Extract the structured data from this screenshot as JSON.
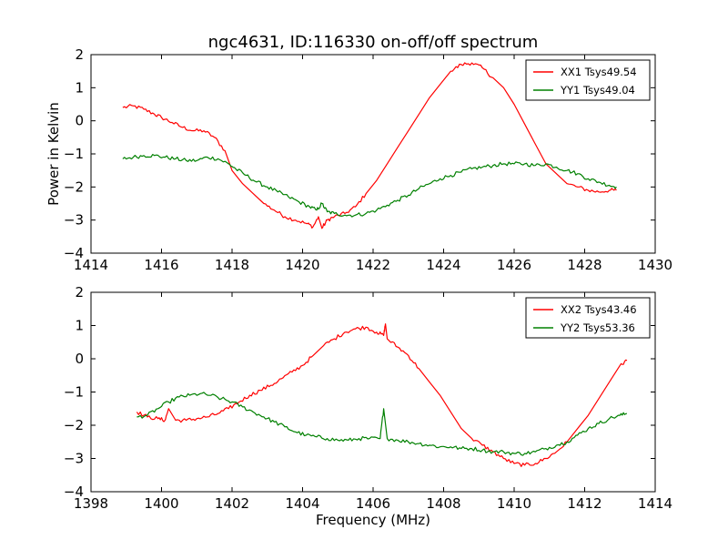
{
  "chart_data": [
    {
      "type": "line",
      "title": "ngc4631, ID:116330 on-off/off spectrum",
      "xlabel": "",
      "ylabel": "Power in Kelvin",
      "xlim": [
        1414,
        1430
      ],
      "ylim": [
        -4,
        2
      ],
      "xticks": [
        "1414",
        "1416",
        "1418",
        "1420",
        "1422",
        "1424",
        "1426",
        "1428",
        "1430"
      ],
      "yticks": [
        "-4",
        "-3",
        "-2",
        "-1",
        "0",
        "1",
        "2"
      ],
      "grid": false,
      "legend_position": "top-right",
      "series": [
        {
          "name": "XX1 Tsys49.54",
          "color": "#ff0000",
          "x": [
            1414.9,
            1415.2,
            1415.5,
            1415.8,
            1416.0,
            1416.3,
            1416.6,
            1416.9,
            1417.2,
            1417.5,
            1417.8,
            1418.0,
            1418.3,
            1418.6,
            1418.9,
            1419.2,
            1419.5,
            1419.8,
            1420.1,
            1420.3,
            1420.45,
            1420.55,
            1420.7,
            1420.9,
            1421.2,
            1421.5,
            1421.8,
            1422.1,
            1422.4,
            1422.7,
            1423.0,
            1423.3,
            1423.6,
            1423.9,
            1424.2,
            1424.5,
            1424.8,
            1425.1,
            1425.4,
            1425.7,
            1426.0,
            1426.3,
            1426.6,
            1426.9,
            1427.2,
            1427.5,
            1427.8,
            1428.1,
            1428.4,
            1428.7,
            1428.9
          ],
          "values": [
            0.4,
            0.45,
            0.35,
            0.2,
            0.1,
            -0.05,
            -0.2,
            -0.3,
            -0.3,
            -0.5,
            -0.9,
            -1.5,
            -1.9,
            -2.2,
            -2.5,
            -2.7,
            -2.9,
            -3.0,
            -3.1,
            -3.2,
            -2.9,
            -3.25,
            -3.0,
            -2.9,
            -2.8,
            -2.6,
            -2.2,
            -1.8,
            -1.3,
            -0.8,
            -0.3,
            0.2,
            0.7,
            1.1,
            1.5,
            1.7,
            1.75,
            1.6,
            1.3,
            1.0,
            0.5,
            -0.1,
            -0.7,
            -1.3,
            -1.6,
            -1.9,
            -2.0,
            -2.1,
            -2.15,
            -2.1,
            -2.1
          ]
        },
        {
          "name": "YY1 Tsys49.04",
          "color": "#008000",
          "x": [
            1414.9,
            1415.2,
            1415.5,
            1415.8,
            1416.1,
            1416.4,
            1416.7,
            1417.0,
            1417.3,
            1417.6,
            1417.9,
            1418.1,
            1418.4,
            1418.7,
            1419.0,
            1419.3,
            1419.6,
            1419.9,
            1420.2,
            1420.4,
            1420.55,
            1420.7,
            1420.9,
            1421.2,
            1421.5,
            1421.8,
            1422.1,
            1422.4,
            1422.7,
            1423.0,
            1423.3,
            1423.6,
            1423.9,
            1424.2,
            1424.5,
            1424.8,
            1425.1,
            1425.4,
            1425.7,
            1426.0,
            1426.3,
            1426.6,
            1426.9,
            1427.2,
            1427.5,
            1427.8,
            1428.1,
            1428.4,
            1428.7,
            1428.9
          ],
          "values": [
            -1.15,
            -1.1,
            -1.05,
            -1.05,
            -1.1,
            -1.15,
            -1.2,
            -1.2,
            -1.1,
            -1.15,
            -1.3,
            -1.45,
            -1.65,
            -1.85,
            -2.0,
            -2.15,
            -2.3,
            -2.45,
            -2.6,
            -2.7,
            -2.5,
            -2.75,
            -2.8,
            -2.85,
            -2.85,
            -2.8,
            -2.7,
            -2.55,
            -2.4,
            -2.25,
            -2.05,
            -1.9,
            -1.75,
            -1.65,
            -1.55,
            -1.45,
            -1.4,
            -1.35,
            -1.3,
            -1.3,
            -1.3,
            -1.35,
            -1.3,
            -1.4,
            -1.5,
            -1.6,
            -1.75,
            -1.85,
            -1.95,
            -2.0
          ]
        }
      ]
    },
    {
      "type": "line",
      "title": "",
      "xlabel": "Frequency (MHz)",
      "ylabel": "",
      "xlim": [
        1398,
        1414
      ],
      "ylim": [
        -4,
        2
      ],
      "xticks": [
        "1398",
        "1400",
        "1402",
        "1404",
        "1406",
        "1408",
        "1410",
        "1412",
        "1414"
      ],
      "yticks": [
        "-4",
        "-3",
        "-2",
        "-1",
        "0",
        "1",
        "2"
      ],
      "grid": false,
      "legend_position": "top-right",
      "series": [
        {
          "name": "XX2 Tsys43.46",
          "color": "#ff0000",
          "x": [
            1399.3,
            1399.6,
            1399.9,
            1400.1,
            1400.2,
            1400.4,
            1400.7,
            1401.0,
            1401.3,
            1401.6,
            1401.9,
            1402.2,
            1402.5,
            1402.8,
            1403.1,
            1403.4,
            1403.7,
            1404.0,
            1404.3,
            1404.6,
            1404.9,
            1405.2,
            1405.5,
            1405.8,
            1406.1,
            1406.3,
            1406.35,
            1406.4,
            1406.7,
            1407.0,
            1407.3,
            1407.6,
            1407.9,
            1408.2,
            1408.5,
            1408.8,
            1409.1,
            1409.4,
            1409.7,
            1410.0,
            1410.3,
            1410.6,
            1410.9,
            1411.2,
            1411.5,
            1411.8,
            1412.1,
            1412.4,
            1412.7,
            1413.0,
            1413.2
          ],
          "values": [
            -1.6,
            -1.75,
            -1.8,
            -1.85,
            -1.5,
            -1.85,
            -1.85,
            -1.8,
            -1.75,
            -1.65,
            -1.5,
            -1.3,
            -1.1,
            -0.95,
            -0.8,
            -0.6,
            -0.4,
            -0.2,
            0.1,
            0.4,
            0.6,
            0.8,
            0.9,
            0.95,
            0.8,
            0.7,
            1.05,
            0.6,
            0.35,
            0.1,
            -0.3,
            -0.7,
            -1.1,
            -1.6,
            -2.1,
            -2.4,
            -2.6,
            -2.8,
            -3.0,
            -3.15,
            -3.2,
            -3.15,
            -3.0,
            -2.8,
            -2.5,
            -2.1,
            -1.7,
            -1.2,
            -0.7,
            -0.2,
            -0.05
          ]
        },
        {
          "name": "YY2 Tsys53.36",
          "color": "#008000",
          "x": [
            1399.3,
            1399.6,
            1399.9,
            1400.2,
            1400.5,
            1400.8,
            1401.1,
            1401.4,
            1401.7,
            1402.0,
            1402.3,
            1402.6,
            1402.9,
            1403.2,
            1403.5,
            1403.8,
            1404.1,
            1404.4,
            1404.7,
            1405.0,
            1405.3,
            1405.6,
            1405.9,
            1406.2,
            1406.3,
            1406.4,
            1406.7,
            1407.0,
            1407.3,
            1407.6,
            1407.9,
            1408.2,
            1408.5,
            1408.8,
            1409.1,
            1409.4,
            1409.7,
            1410.0,
            1410.3,
            1410.6,
            1410.9,
            1411.2,
            1411.5,
            1411.8,
            1412.1,
            1412.4,
            1412.7,
            1413.0,
            1413.2
          ],
          "values": [
            -1.75,
            -1.7,
            -1.5,
            -1.3,
            -1.15,
            -1.1,
            -1.05,
            -1.1,
            -1.2,
            -1.3,
            -1.45,
            -1.6,
            -1.75,
            -1.9,
            -2.05,
            -2.2,
            -2.3,
            -2.35,
            -2.4,
            -2.45,
            -2.45,
            -2.4,
            -2.4,
            -2.4,
            -1.5,
            -2.4,
            -2.45,
            -2.5,
            -2.55,
            -2.6,
            -2.65,
            -2.65,
            -2.7,
            -2.7,
            -2.75,
            -2.8,
            -2.8,
            -2.85,
            -2.85,
            -2.8,
            -2.7,
            -2.6,
            -2.5,
            -2.3,
            -2.1,
            -1.95,
            -1.8,
            -1.7,
            -1.65
          ]
        }
      ]
    }
  ]
}
